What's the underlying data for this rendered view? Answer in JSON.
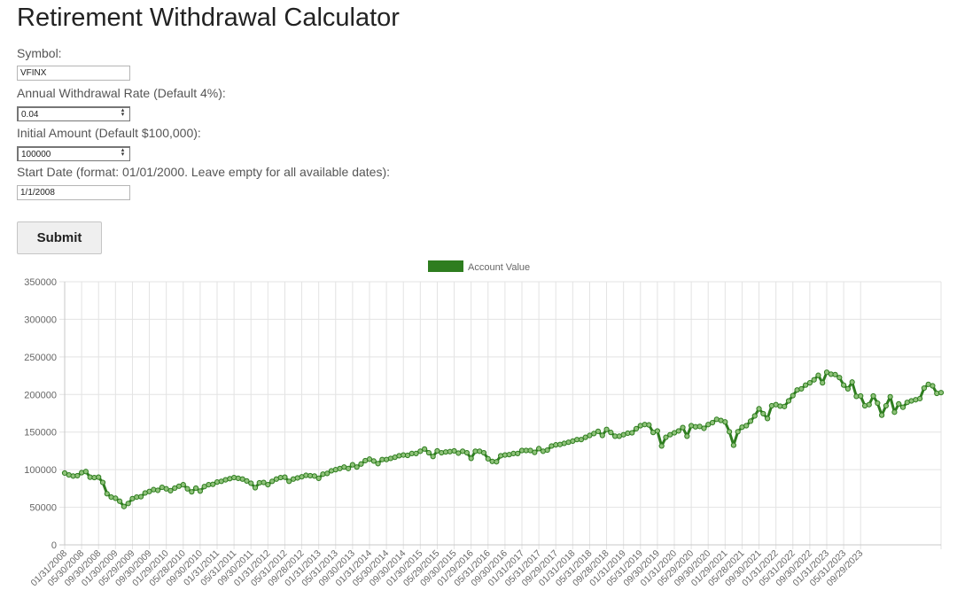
{
  "page": {
    "title": "Retirement Withdrawal Calculator",
    "accent_color": "#2e7d1f"
  },
  "form": {
    "symbol_label": "Symbol:",
    "symbol_value": "VFINX",
    "rate_label": "Annual Withdrawal Rate (Default 4%):",
    "rate_value": "0.04",
    "amount_label": "Initial Amount (Default $100,000):",
    "amount_value": "100000",
    "start_label": "Start Date (format: 01/01/2000. Leave empty for all available dates):",
    "start_value": "1/1/2008",
    "submit_label": "Submit",
    "spinner_icon": "stepper-arrows-icon"
  },
  "chart_data": {
    "type": "line",
    "legend": "Account Value",
    "legend_position": "top-center",
    "color": "#2e7d1f",
    "grid": true,
    "ylim": [
      0,
      350000
    ],
    "y_ticks": [
      "0",
      "50000",
      "100000",
      "150000",
      "200000",
      "250000",
      "300000",
      "350000"
    ],
    "start_month": "2008-01",
    "x_tick_labels": [
      "01/31/2008",
      "05/30/2008",
      "09/30/2008",
      "01/30/2009",
      "05/29/2009",
      "09/30/2009",
      "01/29/2010",
      "05/28/2010",
      "09/30/2010",
      "01/31/2011",
      "05/31/2011",
      "09/30/2011",
      "01/31/2012",
      "05/31/2012",
      "09/28/2012",
      "01/31/2013",
      "05/31/2013",
      "09/30/2013",
      "01/31/2014",
      "05/30/2014",
      "09/30/2014",
      "01/30/2015",
      "05/29/2015",
      "09/30/2015",
      "01/29/2016",
      "05/31/2016",
      "09/30/2016",
      "01/31/2017",
      "05/31/2017",
      "09/29/2017",
      "01/31/2018",
      "05/31/2018",
      "09/28/2018",
      "01/31/2019",
      "05/31/2019",
      "09/30/2019",
      "01/31/2020",
      "05/29/2020",
      "09/30/2020",
      "01/29/2021",
      "05/28/2021",
      "09/30/2021",
      "01/31/2022",
      "05/31/2022",
      "09/30/2022",
      "01/31/2023",
      "05/31/2023",
      "09/29/2023"
    ],
    "anchors": [
      [
        0,
        95500
      ],
      [
        1,
        93000
      ],
      [
        2,
        91500
      ],
      [
        3,
        92000
      ],
      [
        4,
        96000
      ],
      [
        5,
        97500
      ],
      [
        6,
        90000
      ],
      [
        7,
        89500
      ],
      [
        8,
        90000
      ],
      [
        9,
        83000
      ],
      [
        10,
        68000
      ],
      [
        11,
        63500
      ],
      [
        12,
        62000
      ],
      [
        13,
        58000
      ],
      [
        14,
        51000
      ],
      [
        15,
        55000
      ],
      [
        16,
        61500
      ],
      [
        17,
        63500
      ],
      [
        18,
        64000
      ],
      [
        19,
        69000
      ],
      [
        20,
        71000
      ],
      [
        21,
        73500
      ],
      [
        22,
        72500
      ],
      [
        23,
        76500
      ],
      [
        24,
        74500
      ],
      [
        25,
        72000
      ],
      [
        26,
        75500
      ],
      [
        27,
        78000
      ],
      [
        28,
        80000
      ],
      [
        29,
        74500
      ],
      [
        30,
        70500
      ],
      [
        31,
        75500
      ],
      [
        32,
        71500
      ],
      [
        33,
        77500
      ],
      [
        34,
        80000
      ],
      [
        35,
        80500
      ],
      [
        36,
        83500
      ],
      [
        37,
        84500
      ],
      [
        38,
        86500
      ],
      [
        39,
        88000
      ],
      [
        40,
        89500
      ],
      [
        41,
        88500
      ],
      [
        42,
        87500
      ],
      [
        43,
        85000
      ],
      [
        44,
        82000
      ],
      [
        45,
        76000
      ],
      [
        46,
        82500
      ],
      [
        47,
        83000
      ],
      [
        48,
        80000
      ],
      [
        49,
        84500
      ],
      [
        50,
        87500
      ],
      [
        51,
        89500
      ],
      [
        52,
        90000
      ],
      [
        53,
        84500
      ],
      [
        54,
        87500
      ],
      [
        55,
        89000
      ],
      [
        56,
        90500
      ],
      [
        57,
        92500
      ],
      [
        58,
        92000
      ],
      [
        59,
        91500
      ],
      [
        60,
        88500
      ],
      [
        61,
        94000
      ],
      [
        62,
        95000
      ],
      [
        63,
        98500
      ],
      [
        64,
        100000
      ],
      [
        65,
        101500
      ],
      [
        66,
        103500
      ],
      [
        67,
        101500
      ],
      [
        68,
        106500
      ],
      [
        69,
        103500
      ],
      [
        70,
        107500
      ],
      [
        71,
        112000
      ],
      [
        72,
        114000
      ],
      [
        73,
        111500
      ],
      [
        74,
        108000
      ],
      [
        75,
        113500
      ],
      [
        76,
        113500
      ],
      [
        77,
        115000
      ],
      [
        78,
        116500
      ],
      [
        79,
        118500
      ],
      [
        80,
        119500
      ],
      [
        81,
        119000
      ],
      [
        82,
        121500
      ],
      [
        83,
        121500
      ],
      [
        84,
        124500
      ],
      [
        85,
        127500
      ],
      [
        86,
        122500
      ],
      [
        87,
        117500
      ],
      [
        88,
        125000
      ],
      [
        89,
        122500
      ],
      [
        90,
        123500
      ],
      [
        91,
        124000
      ],
      [
        92,
        125000
      ],
      [
        93,
        122000
      ],
      [
        94,
        124500
      ],
      [
        95,
        122500
      ],
      [
        96,
        115000
      ],
      [
        97,
        124500
      ],
      [
        98,
        124500
      ],
      [
        99,
        122500
      ],
      [
        100,
        114500
      ],
      [
        101,
        111000
      ],
      [
        102,
        110500
      ],
      [
        103,
        118500
      ],
      [
        104,
        119500
      ],
      [
        105,
        120000
      ],
      [
        106,
        121500
      ],
      [
        107,
        121500
      ],
      [
        108,
        125500
      ],
      [
        109,
        125500
      ],
      [
        110,
        125500
      ],
      [
        111,
        123000
      ],
      [
        112,
        128000
      ],
      [
        113,
        124500
      ],
      [
        114,
        126000
      ],
      [
        115,
        131500
      ],
      [
        116,
        133000
      ],
      [
        117,
        133500
      ],
      [
        118,
        135000
      ],
      [
        119,
        136500
      ],
      [
        120,
        138000
      ],
      [
        121,
        140000
      ],
      [
        122,
        140000
      ],
      [
        123,
        143000
      ],
      [
        124,
        145500
      ],
      [
        125,
        148000
      ],
      [
        126,
        151000
      ],
      [
        127,
        145500
      ],
      [
        128,
        153500
      ],
      [
        129,
        149500
      ],
      [
        130,
        144500
      ],
      [
        131,
        144500
      ],
      [
        132,
        146500
      ],
      [
        133,
        148500
      ],
      [
        134,
        149000
      ],
      [
        135,
        154500
      ],
      [
        136,
        158500
      ],
      [
        137,
        160000
      ],
      [
        138,
        159500
      ],
      [
        139,
        149500
      ],
      [
        140,
        151500
      ],
      [
        141,
        131500
      ],
      [
        142,
        143000
      ],
      [
        143,
        146500
      ],
      [
        144,
        149000
      ],
      [
        145,
        151500
      ],
      [
        146,
        156000
      ],
      [
        147,
        144500
      ],
      [
        148,
        158500
      ],
      [
        149,
        157000
      ],
      [
        150,
        157500
      ],
      [
        151,
        155000
      ],
      [
        152,
        160000
      ],
      [
        153,
        162500
      ],
      [
        154,
        167000
      ],
      [
        155,
        165500
      ],
      [
        156,
        163500
      ],
      [
        157,
        150500
      ],
      [
        158,
        132500
      ],
      [
        159,
        150500
      ],
      [
        160,
        156500
      ],
      [
        161,
        158500
      ],
      [
        162,
        164500
      ],
      [
        163,
        171500
      ],
      [
        164,
        181000
      ],
      [
        165,
        174500
      ],
      [
        166,
        168000
      ],
      [
        167,
        185000
      ],
      [
        168,
        186500
      ],
      [
        169,
        184500
      ],
      [
        170,
        184000
      ],
      [
        171,
        191500
      ],
      [
        172,
        198500
      ],
      [
        173,
        206000
      ],
      [
        174,
        207500
      ],
      [
        175,
        212500
      ],
      [
        176,
        215500
      ],
      [
        177,
        219500
      ],
      [
        178,
        225500
      ],
      [
        179,
        215500
      ],
      [
        180,
        229500
      ],
      [
        181,
        227000
      ],
      [
        182,
        226500
      ],
      [
        183,
        222500
      ],
      [
        184,
        212500
      ],
      [
        185,
        207500
      ],
      [
        186,
        216500
      ],
      [
        187,
        197500
      ],
      [
        188,
        198000
      ],
      [
        189,
        185000
      ],
      [
        190,
        186500
      ],
      [
        191,
        198000
      ],
      [
        192,
        188500
      ],
      [
        193,
        172500
      ],
      [
        194,
        185000
      ],
      [
        195,
        197000
      ],
      [
        196,
        176500
      ],
      [
        197,
        187500
      ],
      [
        198,
        183000
      ],
      [
        199,
        189500
      ],
      [
        200,
        191500
      ],
      [
        201,
        193000
      ],
      [
        202,
        194500
      ],
      [
        203,
        208500
      ],
      [
        204,
        213500
      ],
      [
        205,
        211500
      ],
      [
        206,
        201500
      ],
      [
        207,
        202500
      ]
    ]
  }
}
